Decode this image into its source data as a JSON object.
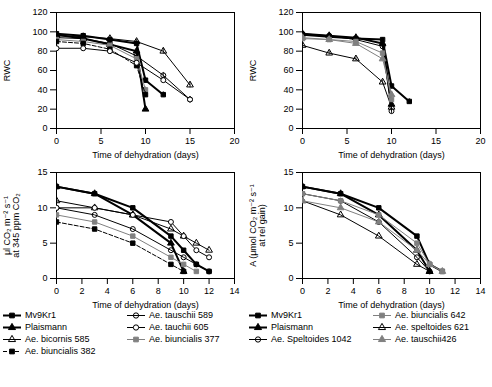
{
  "chart_data": [
    {
      "type": "line",
      "xlabel": "Time of dehydration (days)",
      "ylabel": "RWC",
      "xlim": [
        0,
        20
      ],
      "ylim": [
        0,
        120
      ],
      "xticks": [
        0,
        5,
        10,
        15,
        20
      ],
      "yticks": [
        0,
        20,
        40,
        60,
        80,
        100,
        120
      ],
      "series": [
        {
          "color": "black",
          "marker": "square",
          "line_style": "thick",
          "x": [
            0,
            3,
            6,
            9,
            10,
            12
          ],
          "values": [
            98,
            96,
            92,
            88,
            50,
            35
          ],
          "errors": [
            2,
            2,
            2,
            2,
            3,
            3
          ]
        },
        {
          "color": "black",
          "marker": "triangle",
          "line_style": "thick",
          "x": [
            0,
            3,
            6,
            9,
            10
          ],
          "values": [
            97,
            93,
            87,
            80,
            20
          ],
          "errors": [
            2,
            2,
            2,
            2,
            2
          ]
        },
        {
          "color": "black",
          "marker": "open triangle",
          "line_style": "solid",
          "x": [
            0,
            3,
            6,
            9,
            12,
            15
          ],
          "values": [
            96,
            95,
            93,
            90,
            80,
            45
          ],
          "errors": [
            2,
            2,
            2,
            2,
            3,
            3
          ]
        },
        {
          "color": "black",
          "marker": "open circle",
          "line_style": "solid",
          "x": [
            0,
            3,
            6,
            9,
            12,
            15
          ],
          "values": [
            94,
            93,
            88,
            75,
            55,
            30
          ],
          "errors": [
            2,
            2,
            2,
            2,
            3,
            3
          ]
        },
        {
          "color": "gray",
          "marker": "square",
          "line_style": "solid",
          "x": [
            0,
            3,
            6,
            9,
            10
          ],
          "values": [
            92,
            90,
            86,
            72,
            40
          ],
          "errors": [
            2,
            2,
            2,
            2,
            3
          ]
        },
        {
          "color": "black",
          "marker": "square",
          "line_style": "dashed",
          "x": [
            0,
            3,
            6,
            9,
            10
          ],
          "values": [
            90,
            88,
            82,
            65,
            35
          ],
          "errors": [
            2,
            2,
            2,
            2,
            3
          ]
        },
        {
          "color": "black",
          "marker": "white circle",
          "line_style": "solid",
          "x": [
            0,
            3,
            6,
            9,
            12,
            15
          ],
          "values": [
            83,
            83,
            80,
            68,
            50,
            30
          ],
          "errors": [
            2,
            2,
            2,
            2,
            3,
            3
          ]
        }
      ]
    },
    {
      "type": "line",
      "xlabel": "Time of dehydration (days)",
      "ylabel": "RWC",
      "xlim": [
        0,
        20
      ],
      "ylim": [
        0,
        120
      ],
      "xticks": [
        0,
        5,
        10,
        15,
        20
      ],
      "yticks": [
        0,
        20,
        40,
        60,
        80,
        100,
        120
      ],
      "series": [
        {
          "color": "black",
          "marker": "square",
          "line_style": "thick",
          "x": [
            0,
            3,
            6,
            9,
            10,
            12
          ],
          "values": [
            97,
            95,
            93,
            92,
            44,
            28
          ],
          "errors": [
            2,
            2,
            2,
            2,
            3,
            3
          ]
        },
        {
          "color": "black",
          "marker": "triangle",
          "line_style": "thick",
          "x": [
            0,
            3,
            6,
            9,
            10
          ],
          "values": [
            98,
            96,
            94,
            88,
            25
          ],
          "errors": [
            2,
            2,
            2,
            2,
            3
          ]
        },
        {
          "color": "black",
          "marker": "open circle",
          "line_style": "solid",
          "x": [
            0,
            3,
            6,
            9,
            10
          ],
          "values": [
            98,
            96,
            92,
            85,
            18
          ],
          "errors": [
            2,
            2,
            2,
            2,
            3
          ]
        },
        {
          "color": "black",
          "marker": "open triangle",
          "line_style": "solid",
          "x": [
            0,
            3,
            6,
            9,
            10
          ],
          "values": [
            86,
            78,
            72,
            48,
            22
          ],
          "errors": [
            2,
            2,
            2,
            2,
            3
          ]
        },
        {
          "color": "gray",
          "marker": "square",
          "line_style": "solid",
          "x": [
            0,
            3,
            6,
            9,
            10
          ],
          "values": [
            93,
            92,
            90,
            78,
            30
          ],
          "errors": [
            2,
            2,
            2,
            2,
            3
          ]
        },
        {
          "color": "gray",
          "marker": "triangle",
          "line_style": "solid",
          "x": [
            0,
            3,
            6,
            9,
            10
          ],
          "values": [
            94,
            92,
            88,
            72,
            35
          ],
          "errors": [
            2,
            2,
            2,
            2,
            3
          ]
        }
      ]
    },
    {
      "type": "line",
      "xlabel": "Time of dehydration (days)",
      "ylabel": "μl CO₂ m⁻² s⁻¹\nat 345 ppm CO₂",
      "xlim": [
        0,
        14
      ],
      "ylim": [
        0,
        15
      ],
      "xticks": [
        0,
        2,
        4,
        6,
        8,
        10,
        12,
        14
      ],
      "yticks": [
        0,
        5,
        10,
        15
      ],
      "legend": "bottom",
      "series": [
        {
          "name": "Mv9Kr1",
          "color": "black",
          "marker": "square",
          "line_style": "thick",
          "x": [
            0,
            3,
            6,
            9,
            10,
            11,
            12
          ],
          "values": [
            13,
            12,
            10,
            6,
            4,
            2,
            1
          ]
        },
        {
          "name": "Plaismann",
          "color": "black",
          "marker": "triangle",
          "line_style": "thick",
          "x": [
            0,
            3,
            6,
            9,
            10
          ],
          "values": [
            13,
            12,
            9,
            5,
            1
          ]
        },
        {
          "name": "Ae. bicornis 585",
          "color": "black",
          "marker": "open triangle",
          "line_style": "solid",
          "x": [
            0,
            3,
            6,
            9,
            10,
            11,
            12
          ],
          "values": [
            11,
            10,
            9,
            7,
            6,
            5,
            4
          ]
        },
        {
          "name": "Ae. biuncialis 382",
          "color": "black",
          "marker": "square",
          "line_style": "dashed",
          "x": [
            0,
            3,
            6,
            9,
            10
          ],
          "values": [
            8,
            7,
            5,
            2,
            1
          ]
        },
        {
          "name": "Ae. tauschii 589",
          "color": "black",
          "marker": "open circle",
          "line_style": "solid",
          "x": [
            0,
            3,
            6,
            9,
            10,
            11,
            12
          ],
          "values": [
            10,
            9,
            7,
            4,
            3,
            2,
            1
          ]
        },
        {
          "name": "Ae. tauchii 605",
          "color": "black",
          "marker": "white circle",
          "line_style": "solid",
          "x": [
            0,
            3,
            6,
            9,
            10,
            11,
            12
          ],
          "values": [
            10,
            10,
            9,
            8,
            6,
            4,
            3
          ]
        },
        {
          "name": "Ae. biuncialis 377",
          "color": "gray",
          "marker": "square",
          "line_style": "solid",
          "x": [
            0,
            3,
            6,
            9,
            10,
            11
          ],
          "values": [
            9,
            8,
            6,
            3,
            2,
            1
          ]
        }
      ]
    },
    {
      "type": "line",
      "xlabel": "Time of dehydration (days)",
      "ylabel": "A (μmol CO₂ m⁻² s⁻¹\nat rel gain)",
      "xlim": [
        0,
        14
      ],
      "ylim": [
        0,
        15
      ],
      "xticks": [
        0,
        2,
        4,
        6,
        8,
        10,
        12,
        14
      ],
      "yticks": [
        0,
        5,
        10,
        15
      ],
      "legend": "bottom",
      "series": [
        {
          "name": "Mv9Kr1",
          "color": "black",
          "marker": "square",
          "line_style": "thick",
          "x": [
            0,
            3,
            6,
            9,
            10,
            11
          ],
          "values": [
            13,
            12,
            10,
            6,
            2,
            1
          ]
        },
        {
          "name": "Plaismann",
          "color": "black",
          "marker": "triangle",
          "line_style": "thick",
          "x": [
            0,
            3,
            6,
            9,
            10
          ],
          "values": [
            13,
            12,
            9,
            4,
            1
          ]
        },
        {
          "name": "Ae. Speltoides 1042",
          "color": "black",
          "marker": "open circle",
          "line_style": "solid",
          "x": [
            0,
            3,
            6,
            9,
            10
          ],
          "values": [
            12,
            11,
            8,
            3,
            1
          ]
        },
        {
          "name": "Ae. biuncialis 642",
          "color": "gray",
          "marker": "square",
          "line_style": "solid",
          "x": [
            0,
            3,
            6,
            9,
            10,
            11
          ],
          "values": [
            12,
            11,
            9,
            5,
            2,
            1
          ]
        },
        {
          "name": "Ae. speltoides 621",
          "color": "black",
          "marker": "open triangle",
          "line_style": "solid",
          "x": [
            0,
            3,
            6,
            9,
            10
          ],
          "values": [
            11,
            9,
            6,
            2,
            1
          ]
        },
        {
          "name": "Ae. tauschii426",
          "color": "gray",
          "marker": "triangle",
          "line_style": "solid",
          "x": [
            0,
            3,
            6,
            9,
            10,
            11
          ],
          "values": [
            11,
            10,
            8,
            4,
            2,
            1
          ]
        }
      ]
    }
  ]
}
